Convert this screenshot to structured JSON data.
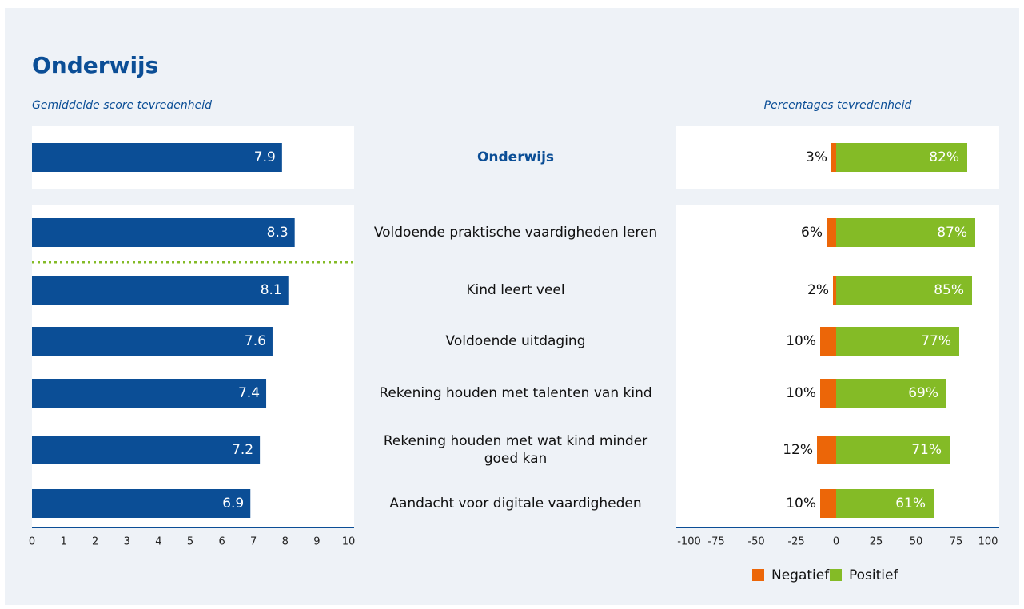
{
  "title": "Onderwijs",
  "chart_data": [
    {
      "type": "bar",
      "title": "Gemiddelde score tevredenheid",
      "categories": [
        "Onderwijs",
        "Voldoende praktische vaardigheden leren",
        "Kind leert veel",
        "Voldoende uitdaging",
        "Rekening houden met talenten van kind",
        "Rekening houden met wat kind minder goed kan",
        "Aandacht voor digitale vaardigheden"
      ],
      "values": [
        7.9,
        8.3,
        8.1,
        7.6,
        7.4,
        7.2,
        6.9
      ],
      "color": "#0b4e96",
      "xlim": [
        0,
        10
      ],
      "xticks": [
        0,
        1,
        2,
        3,
        4,
        5,
        6,
        7,
        8,
        9,
        10
      ]
    },
    {
      "type": "diverging",
      "title": "Percentages tevredenheid",
      "series": [
        {
          "name": "Negatief",
          "color": "#ec6608",
          "values": [
            3,
            6,
            2,
            10,
            10,
            12,
            10
          ],
          "value_labels": [
            "3%",
            "6%",
            "2%",
            "10%",
            "10%",
            "12%",
            "10%"
          ]
        },
        {
          "name": "Positief",
          "color": "#84bb26",
          "values": [
            82,
            87,
            85,
            77,
            69,
            71,
            61
          ],
          "value_labels": [
            "82%",
            "87%",
            "85%",
            "77%",
            "69%",
            "71%",
            "61%"
          ]
        }
      ],
      "xlim": [
        -100,
        100
      ],
      "xticks": [
        -100,
        -75,
        -50,
        -25,
        0,
        25,
        50,
        75,
        100
      ],
      "legend": "bottom"
    }
  ]
}
